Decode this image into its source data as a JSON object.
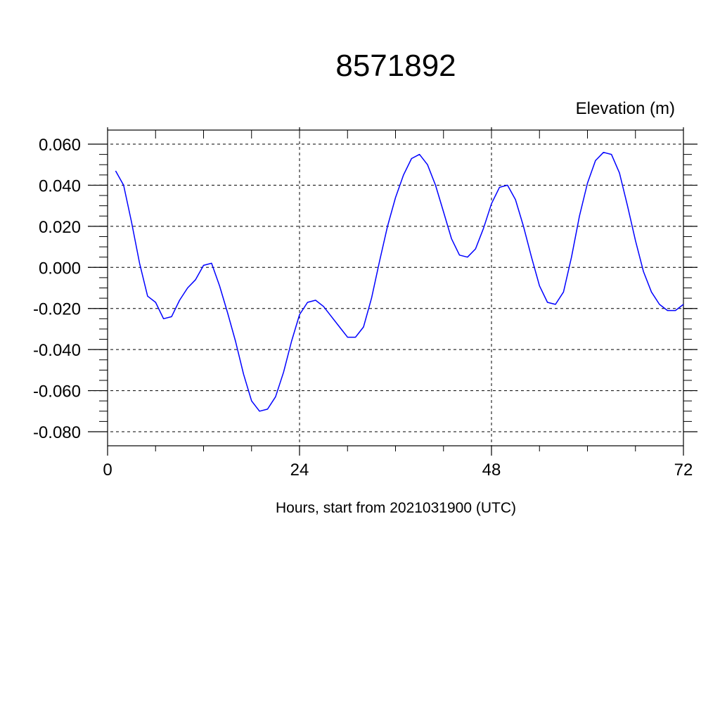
{
  "chart_data": {
    "type": "line",
    "title": "8571892",
    "units_label": "Elevation (m)",
    "xlabel": "Hours, start from 2021031900 (UTC)",
    "ylabel": "",
    "xlim": [
      0,
      72
    ],
    "ylim": [
      -0.08,
      0.06
    ],
    "xticks": [
      0,
      24,
      48,
      72
    ],
    "xtick_labels": [
      "0",
      "24",
      "48",
      "72"
    ],
    "yticks": [
      0.06,
      0.04,
      0.02,
      0.0,
      -0.02,
      -0.04,
      -0.06,
      -0.08
    ],
    "ytick_labels": [
      "0.060",
      "0.040",
      "0.020",
      "0.000",
      "-0.020",
      "-0.040",
      "-0.060",
      "-0.080"
    ],
    "grid": true,
    "line_color": "#0000ff",
    "series": [
      {
        "x": [
          1,
          2,
          3,
          4,
          5,
          6,
          7,
          8,
          9,
          10,
          11,
          12,
          13,
          14,
          15,
          16,
          17,
          18,
          19,
          20,
          21,
          22,
          23,
          24,
          25,
          26,
          27,
          28,
          29,
          30,
          31,
          32,
          33,
          34,
          35,
          36,
          37,
          38,
          39,
          40,
          41,
          42,
          43,
          44,
          45,
          46,
          47,
          48,
          49,
          50,
          51,
          52,
          53,
          54,
          55,
          56,
          57,
          58,
          59,
          60,
          61,
          62,
          63,
          64,
          65,
          66,
          67,
          68,
          69,
          70,
          71,
          72
        ],
        "values": [
          0.047,
          0.04,
          0.022,
          0.002,
          -0.014,
          -0.017,
          -0.025,
          -0.024,
          -0.016,
          -0.01,
          -0.006,
          0.001,
          0.002,
          -0.009,
          -0.022,
          -0.036,
          -0.052,
          -0.065,
          -0.07,
          -0.069,
          -0.063,
          -0.051,
          -0.036,
          -0.023,
          -0.017,
          -0.016,
          -0.019,
          -0.024,
          -0.029,
          -0.034,
          -0.034,
          -0.029,
          -0.015,
          0.003,
          0.02,
          0.034,
          0.045,
          0.053,
          0.055,
          0.05,
          0.04,
          0.027,
          0.014,
          0.006,
          0.005,
          0.009,
          0.019,
          0.031,
          0.039,
          0.04,
          0.033,
          0.02,
          0.005,
          -0.009,
          -0.017,
          -0.018,
          -0.012,
          0.005,
          0.025,
          0.041,
          0.052,
          0.056,
          0.055,
          0.046,
          0.03,
          0.013,
          -0.002,
          -0.012,
          -0.018,
          -0.021,
          -0.021,
          -0.018
        ]
      }
    ]
  }
}
